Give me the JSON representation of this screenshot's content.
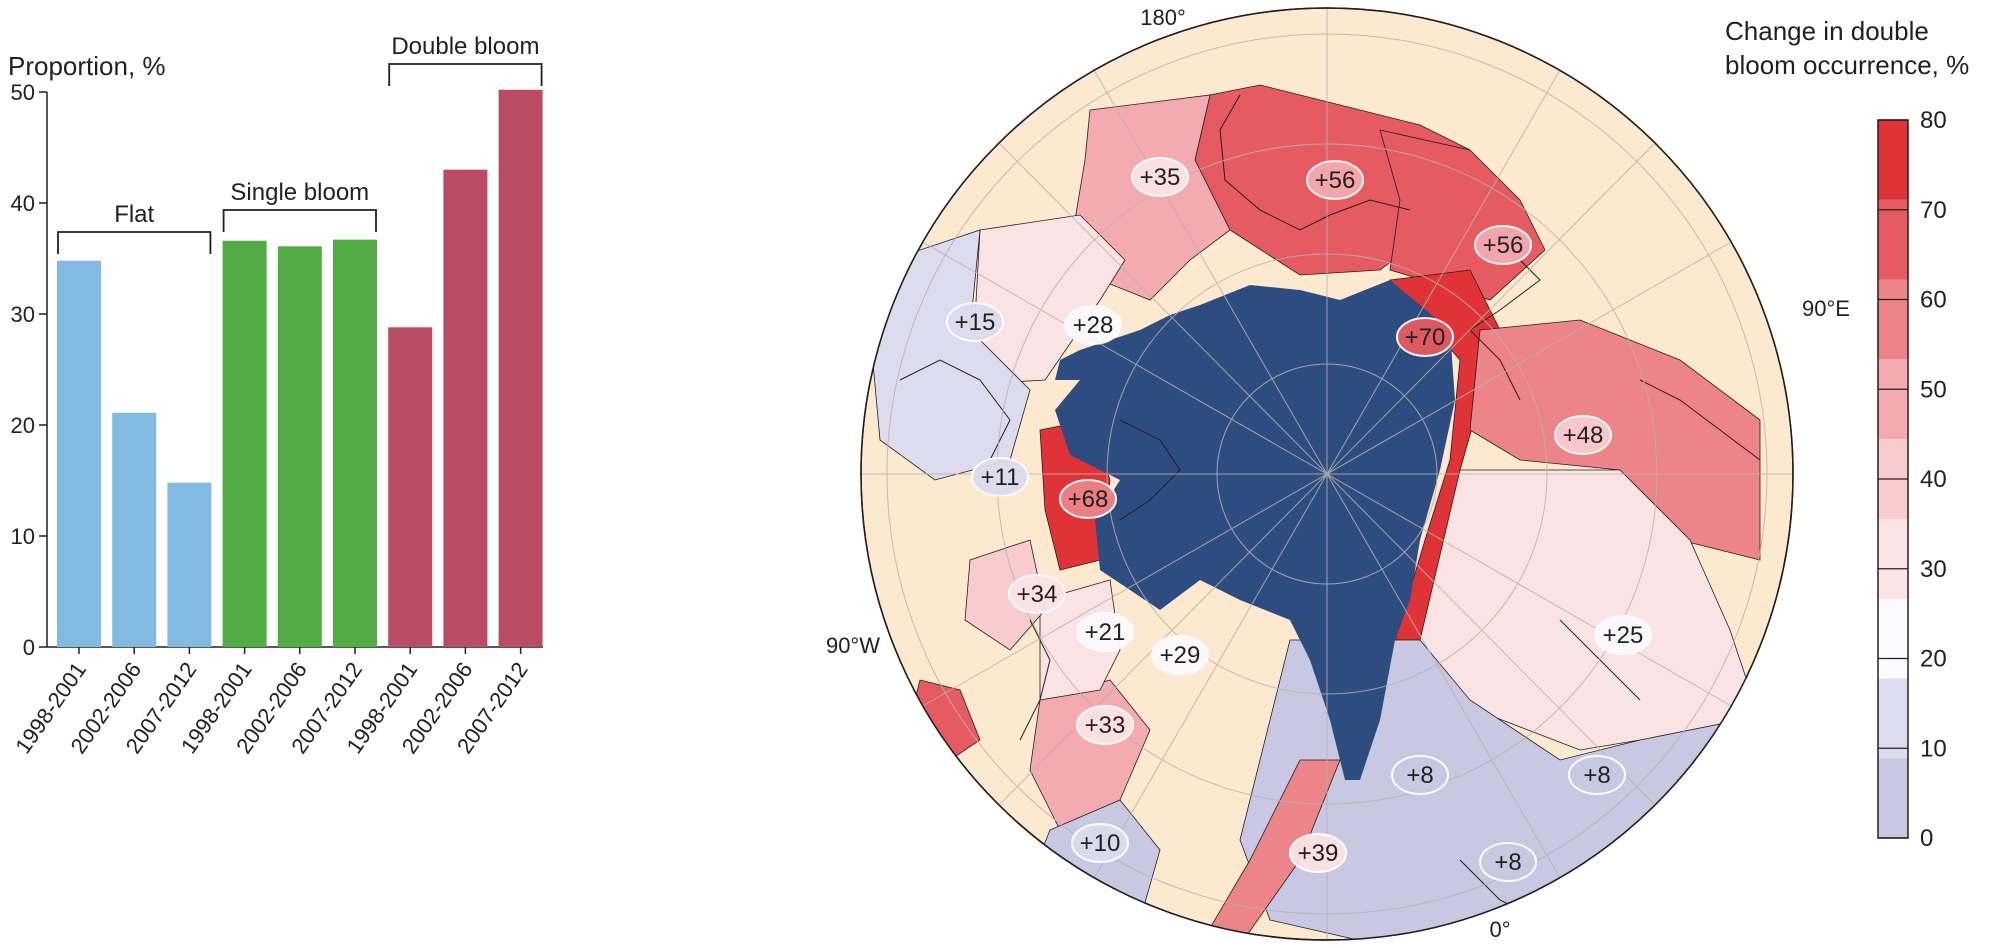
{
  "chart_data": [
    {
      "type": "bar",
      "ylabel": "Proportion, %",
      "ylim": [
        0,
        50
      ],
      "yticks": [
        0,
        10,
        20,
        30,
        40,
        50
      ],
      "groups": [
        {
          "name": "Flat",
          "color": "#82bae3",
          "categories": [
            "1998-2001",
            "2002-2006",
            "2007-2012"
          ],
          "values": [
            34.8,
            21.1,
            14.8
          ]
        },
        {
          "name": "Single bloom",
          "color": "#53ac46",
          "categories": [
            "1998-2001",
            "2002-2006",
            "2007-2012"
          ],
          "values": [
            36.6,
            36.1,
            36.7
          ]
        },
        {
          "name": "Double bloom",
          "color": "#b94c62",
          "categories": [
            "1998-2001",
            "2002-2006",
            "2007-2012"
          ],
          "values": [
            28.8,
            43.0,
            50.2
          ]
        }
      ],
      "grid": false
    },
    {
      "type": "map",
      "projection": "north-polar",
      "longitude_labels": [
        "180°",
        "90°E",
        "0°",
        "90°W"
      ],
      "colorbar": {
        "title_lines": [
          "Change in double",
          "bloom occurrence, %"
        ],
        "range": [
          0,
          80
        ],
        "ticks": [
          0,
          10,
          20,
          30,
          40,
          50,
          60,
          70,
          80
        ],
        "colors": [
          "#c8c8e2",
          "#dcdcee",
          "#fbfafd",
          "#fbe3e4",
          "#f8cbcf",
          "#f3aab0",
          "#ec8489",
          "#e55b61",
          "#e03338"
        ]
      },
      "ice_color": "#2d4c80",
      "land_color": "#fde9d0",
      "labels": [
        {
          "text": "+35",
          "value": 35
        },
        {
          "text": "+56",
          "value": 56
        },
        {
          "text": "+56",
          "value": 56
        },
        {
          "text": "+15",
          "value": 15
        },
        {
          "text": "+28",
          "value": 28
        },
        {
          "text": "+70",
          "value": 70
        },
        {
          "text": "+48",
          "value": 48
        },
        {
          "text": "+11",
          "value": 11
        },
        {
          "text": "+68",
          "value": 68
        },
        {
          "text": "+34",
          "value": 34
        },
        {
          "text": "+21",
          "value": 21
        },
        {
          "text": "+29",
          "value": 29
        },
        {
          "text": "+25",
          "value": 25
        },
        {
          "text": "+33",
          "value": 33
        },
        {
          "text": "+8",
          "value": 8
        },
        {
          "text": "+8",
          "value": 8
        },
        {
          "text": "+10",
          "value": 10
        },
        {
          "text": "+39",
          "value": 39
        },
        {
          "text": "+8",
          "value": 8
        }
      ]
    }
  ]
}
